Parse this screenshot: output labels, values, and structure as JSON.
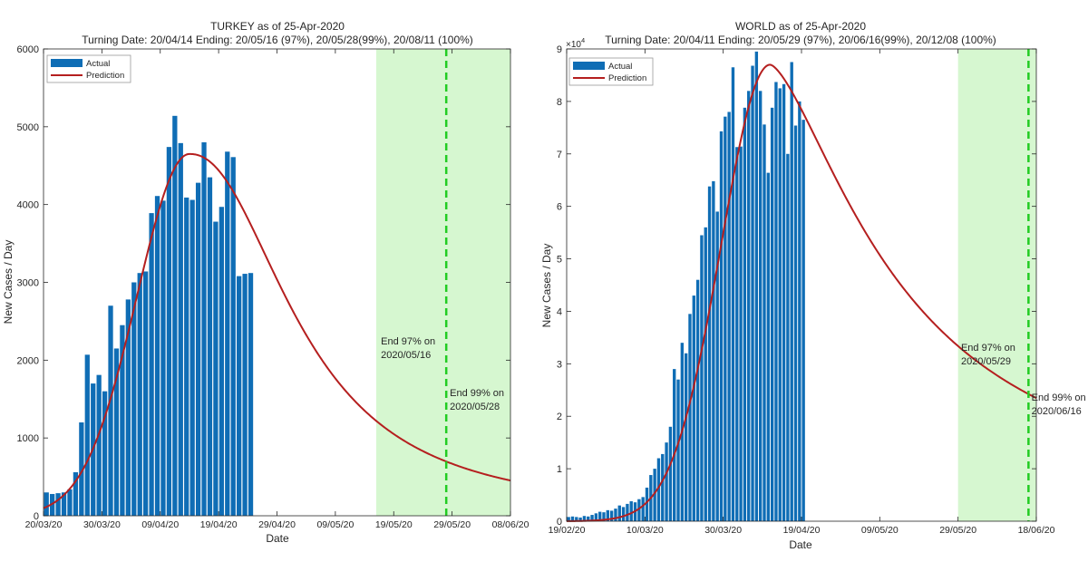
{
  "colors": {
    "bar": "#0f6db5",
    "prediction": "#b51f1f",
    "shade": "#d6f7d0",
    "end_line": "#22cc22",
    "axis": "#262626"
  },
  "chart_data": [
    {
      "type": "bar",
      "id": "turkey",
      "title": "TURKEY as of 25-Apr-2020",
      "subtitle": "Turning Date: 20/04/14  Ending: 20/05/16 (97%), 20/05/28(99%), 20/08/11 (100%)",
      "xlabel": "Date",
      "ylabel": "New Cases / Day",
      "xlim": [
        0,
        80
      ],
      "ylim": [
        0,
        6000
      ],
      "exponent_label": "",
      "yticks": [
        0,
        1000,
        2000,
        3000,
        4000,
        5000,
        6000
      ],
      "ytick_labels": [
        "0",
        "1000",
        "2000",
        "3000",
        "4000",
        "5000",
        "6000"
      ],
      "xticks": [
        0,
        10,
        20,
        30,
        40,
        50,
        60,
        70,
        80
      ],
      "xtick_labels": [
        "20/03/20",
        "30/03/20",
        "09/04/20",
        "19/04/20",
        "29/04/20",
        "09/05/20",
        "19/05/20",
        "29/05/20",
        "08/06/20"
      ],
      "bars_start_day": 0,
      "values": [
        300,
        280,
        290,
        300,
        340,
        560,
        1200,
        2070,
        1700,
        1810,
        1600,
        2700,
        2150,
        2450,
        2780,
        3000,
        3120,
        3140,
        3890,
        4110,
        4050,
        4740,
        5140,
        4790,
        4090,
        4060,
        4280,
        4800,
        4350,
        3780,
        3970,
        4680,
        4610,
        3080,
        3110,
        3120
      ],
      "prediction": {
        "peak_day": 25,
        "peak_value": 4650,
        "sigma_left": 9,
        "tail_scale": 20,
        "tail_shape": 2.2
      },
      "legend": [
        "Actual",
        "Prediction"
      ],
      "legend_position": "top-left",
      "shade_range": [
        57,
        80
      ],
      "end_line_day": 69,
      "annotations": [
        {
          "lines": [
            "End 97% on",
            "2020/05/16"
          ],
          "x": 57.5,
          "y": 2200
        },
        {
          "lines": [
            "End 99% on",
            "2020/05/28"
          ],
          "x": 69.3,
          "y": 1540
        }
      ]
    },
    {
      "type": "bar",
      "id": "world",
      "title": "WORLD as of 25-Apr-2020",
      "subtitle": "Turning Date: 20/04/11  Ending: 20/05/29 (97%), 20/06/16(99%), 20/12/08 (100%)",
      "xlabel": "Date",
      "ylabel": "New Cases / Day",
      "xlim": [
        0,
        120
      ],
      "ylim": [
        0,
        9
      ],
      "exponent_label": "×10",
      "exponent_power": "4",
      "yticks": [
        0,
        1,
        2,
        3,
        4,
        5,
        6,
        7,
        8,
        9
      ],
      "ytick_labels": [
        "0",
        "1",
        "2",
        "3",
        "4",
        "5",
        "6",
        "7",
        "8",
        "9"
      ],
      "xticks": [
        0,
        20,
        40,
        60,
        80,
        100,
        120
      ],
      "xtick_labels": [
        "19/02/20",
        "10/03/20",
        "30/03/20",
        "19/04/20",
        "09/05/20",
        "29/05/20",
        "18/06/20"
      ],
      "bars_start_day": 0,
      "values": [
        0.08,
        0.09,
        0.08,
        0.07,
        0.1,
        0.09,
        0.12,
        0.15,
        0.18,
        0.17,
        0.21,
        0.2,
        0.24,
        0.3,
        0.27,
        0.33,
        0.38,
        0.36,
        0.42,
        0.46,
        0.64,
        0.88,
        1.0,
        1.2,
        1.28,
        1.5,
        1.8,
        2.9,
        2.7,
        3.4,
        3.2,
        3.95,
        4.3,
        4.6,
        5.45,
        5.6,
        6.38,
        6.48,
        5.9,
        7.43,
        7.71,
        7.8,
        8.65,
        7.13,
        7.14,
        7.88,
        8.2,
        8.68,
        8.95,
        8.2,
        7.56,
        6.64,
        7.88,
        8.37,
        8.25,
        8.33,
        7.0,
        8.75,
        7.54,
        8.0,
        7.65
      ],
      "prediction": {
        "peak_day": 52,
        "peak_value": 8.7,
        "sigma_left": 12.5,
        "tail_scale": 35,
        "tail_shape": 1.5
      },
      "legend": [
        "Actual",
        "Prediction"
      ],
      "legend_position": "top-left",
      "shade_range": [
        100,
        120
      ],
      "end_line_day": 118,
      "annotations": [
        {
          "lines": [
            "End 97% on",
            "2020/05/29"
          ],
          "x": 100.3,
          "y": 3.25
        },
        {
          "lines": [
            "End 99% on",
            "2020/06/16"
          ],
          "x": 118.3,
          "y": 2.3
        }
      ]
    }
  ]
}
